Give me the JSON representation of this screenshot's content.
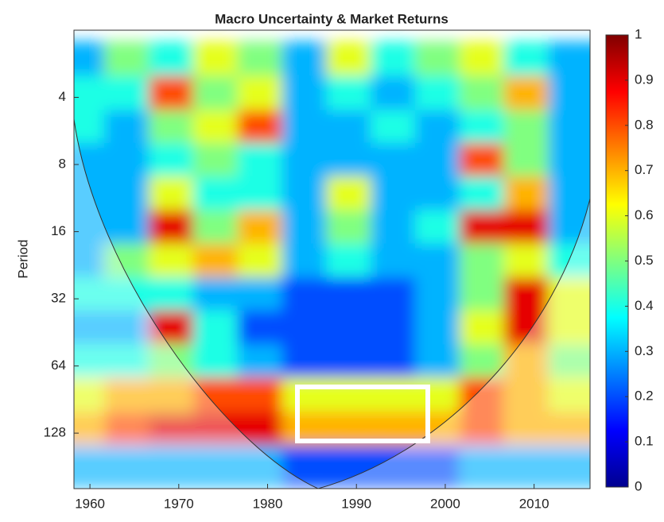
{
  "chart_data": {
    "type": "wavelet-coherence",
    "title": "Macro Uncertainty & Market Returns",
    "y_label": "Period",
    "x": [
      1960,
      1965,
      1970,
      1975,
      1980,
      1985,
      1990,
      1995,
      2000,
      2005,
      2010,
      2015
    ],
    "periods": [
      2.8,
      4,
      5.7,
      8,
      11.3,
      16,
      22.6,
      32,
      45,
      64,
      90,
      128,
      181
    ],
    "z": [
      [
        0.3,
        0.5,
        0.4,
        0.6,
        0.5,
        0.3,
        0.6,
        0.4,
        0.5,
        0.6,
        0.4,
        0.3
      ],
      [
        0.4,
        0.4,
        0.8,
        0.5,
        0.6,
        0.3,
        0.4,
        0.3,
        0.4,
        0.5,
        0.7,
        0.3
      ],
      [
        0.4,
        0.3,
        0.5,
        0.6,
        0.8,
        0.3,
        0.3,
        0.4,
        0.3,
        0.4,
        0.5,
        0.3
      ],
      [
        0.3,
        0.3,
        0.4,
        0.5,
        0.4,
        0.3,
        0.3,
        0.3,
        0.3,
        0.8,
        0.5,
        0.3
      ],
      [
        0.3,
        0.3,
        0.6,
        0.4,
        0.4,
        0.3,
        0.6,
        0.3,
        0.3,
        0.4,
        0.7,
        0.3
      ],
      [
        0.3,
        0.3,
        0.9,
        0.5,
        0.7,
        0.3,
        0.5,
        0.3,
        0.4,
        0.9,
        0.9,
        0.3
      ],
      [
        0.3,
        0.5,
        0.6,
        0.7,
        0.6,
        0.3,
        0.4,
        0.3,
        0.3,
        0.5,
        0.6,
        0.4
      ],
      [
        0.4,
        0.4,
        0.4,
        0.3,
        0.3,
        0.2,
        0.2,
        0.2,
        0.3,
        0.5,
        0.9,
        0.6
      ],
      [
        0.3,
        0.3,
        0.9,
        0.4,
        0.2,
        0.2,
        0.2,
        0.2,
        0.3,
        0.6,
        0.9,
        0.6
      ],
      [
        0.4,
        0.4,
        0.5,
        0.4,
        0.3,
        0.2,
        0.2,
        0.2,
        0.3,
        0.5,
        0.7,
        0.5
      ],
      [
        0.6,
        0.7,
        0.7,
        0.8,
        0.8,
        0.6,
        0.6,
        0.6,
        0.6,
        0.8,
        0.7,
        0.6
      ],
      [
        0.7,
        0.8,
        0.9,
        0.9,
        0.9,
        0.7,
        0.7,
        0.7,
        0.7,
        0.8,
        0.7,
        0.7
      ],
      [
        0.3,
        0.3,
        0.3,
        0.3,
        0.3,
        0.2,
        0.2,
        0.2,
        0.2,
        0.3,
        0.3,
        0.3
      ]
    ],
    "xlim": [
      1958.2,
      2016.3
    ],
    "xticks": [
      1960,
      1970,
      1980,
      1990,
      2000,
      2010
    ],
    "ylim": [
      2,
      227
    ],
    "yticks": [
      4,
      8,
      16,
      32,
      64,
      128
    ],
    "y_scale": "log2",
    "y_reversed": true,
    "colormap": "jet",
    "clim": [
      0,
      1
    ],
    "cticks": [
      0,
      0.1,
      0.2,
      0.3,
      0.4,
      0.5,
      0.6,
      0.7,
      0.8,
      0.9,
      1
    ]
  }
}
